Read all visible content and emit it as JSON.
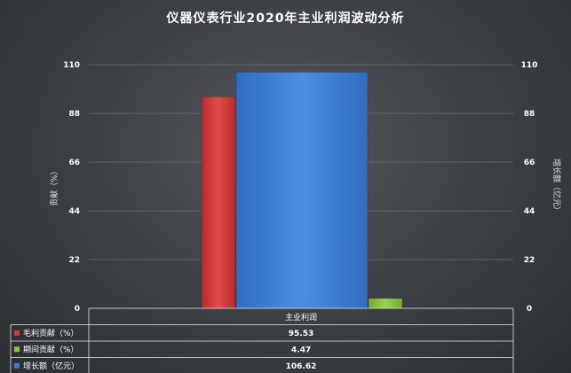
{
  "chart_data": {
    "type": "bar",
    "title": "仪器仪表行业2020年主业利润波动分析",
    "categories": [
      "主业利润"
    ],
    "series": [
      {
        "name": "毛利贡献（%）",
        "values": [
          95.53
        ],
        "axis": "left",
        "color": "#d93a3a"
      },
      {
        "name": "期间贡献（%）",
        "values": [
          4.47
        ],
        "axis": "left",
        "color": "#8cc63f"
      },
      {
        "name": "增长额（亿元）",
        "values": [
          106.62
        ],
        "axis": "right",
        "color": "#3b7fd4"
      }
    ],
    "ylabel": "贡献（%）",
    "y2label": "增长额（亿元）",
    "ylim": [
      0,
      110
    ],
    "y2lim": [
      0,
      110
    ],
    "yticks": [
      0,
      22,
      44,
      66,
      88,
      110
    ],
    "y2ticks": [
      0,
      22,
      44,
      66,
      88,
      110
    ],
    "grid": true,
    "legend": "data-table"
  }
}
